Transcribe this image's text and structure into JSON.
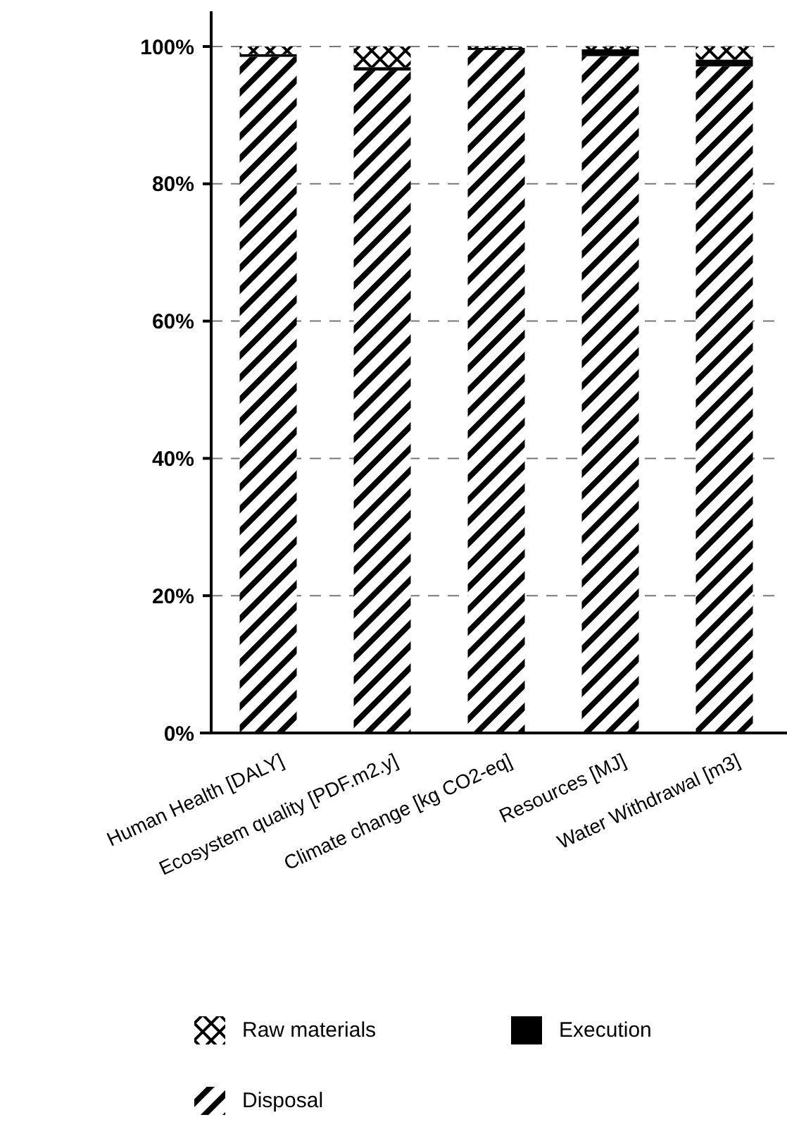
{
  "chart_data": {
    "type": "bar",
    "stacked": true,
    "categories": [
      "Human Health [DALY]",
      "Ecosystem quality [PDF.m2.y]",
      "Climate change [kg CO2-eq]",
      "Resources [MJ]",
      "Water Withdrawal [m3]"
    ],
    "series": [
      {
        "name": "Disposal",
        "color": "#000000",
        "values": [
          98.5,
          96.5,
          99.5,
          98.6,
          97.1
        ]
      },
      {
        "name": "Execution",
        "color": "#000000",
        "values": [
          0.4,
          0.5,
          0.3,
          1.0,
          1.0
        ]
      },
      {
        "name": "Raw materials",
        "color": "#000000",
        "values": [
          1.1,
          3.0,
          0.2,
          0.4,
          1.9
        ]
      }
    ],
    "ylim": [
      0,
      100
    ],
    "yticks": [
      {
        "value": 0,
        "label": "0%"
      },
      {
        "value": 20,
        "label": "20%"
      },
      {
        "value": 40,
        "label": "40%"
      },
      {
        "value": 60,
        "label": "60%"
      },
      {
        "value": 80,
        "label": "80%"
      },
      {
        "value": 100,
        "label": "100%"
      }
    ],
    "grid": "y",
    "legend": "bottom"
  }
}
